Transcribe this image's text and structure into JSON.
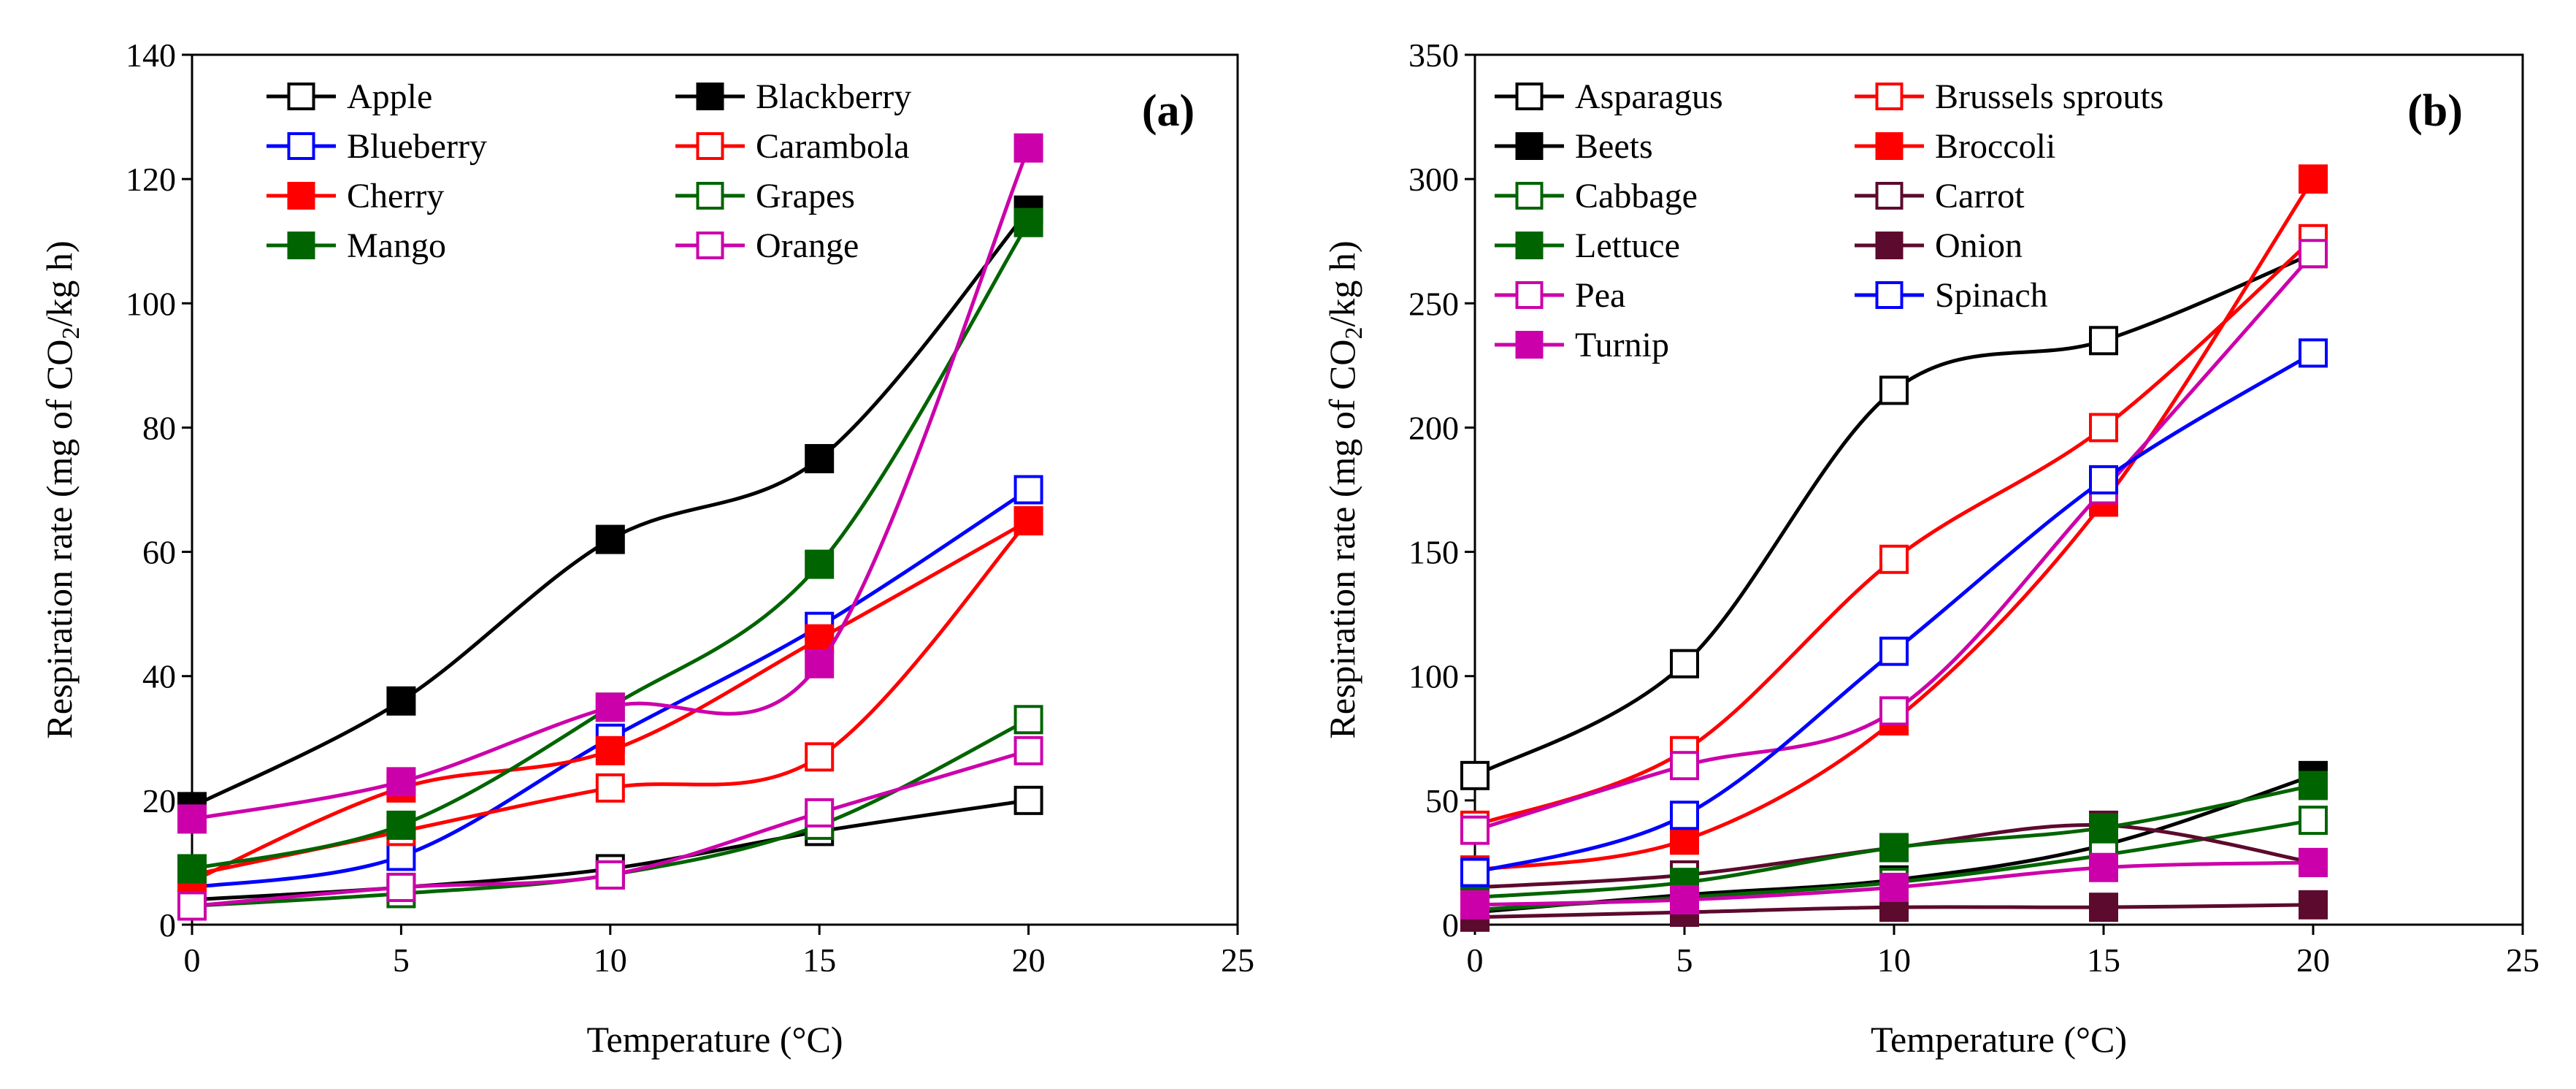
{
  "chart_data": [
    {
      "type": "line",
      "panel_label": "(a)",
      "xlabel": "Temperature (°C)",
      "ylabel_parts": [
        "Respiration rate (mg of CO",
        "2",
        "/kg h)"
      ],
      "xlim": [
        0,
        25
      ],
      "ylim": [
        0,
        140
      ],
      "xticks": [
        0,
        5,
        10,
        15,
        20,
        25
      ],
      "yticks": [
        0,
        20,
        40,
        60,
        80,
        100,
        120,
        140
      ],
      "x": [
        0,
        5,
        10,
        15,
        20
      ],
      "legend_position": "top-left",
      "series": [
        {
          "name": "Apple",
          "color": "#000000",
          "filled": false,
          "values": [
            4,
            6,
            9,
            15,
            20
          ]
        },
        {
          "name": "Blackberry",
          "color": "#000000",
          "filled": true,
          "values": [
            19,
            36,
            62,
            75,
            115
          ]
        },
        {
          "name": "Blueberry",
          "color": "#0000ff",
          "filled": false,
          "values": [
            6,
            11,
            30,
            48,
            70
          ]
        },
        {
          "name": "Carambola",
          "color": "#ff0000",
          "filled": false,
          "values": [
            8,
            15,
            22,
            27,
            65
          ]
        },
        {
          "name": "Cherry",
          "color": "#ff0000",
          "filled": true,
          "values": [
            7,
            22,
            28,
            46,
            65
          ]
        },
        {
          "name": "Grapes",
          "color": "#006400",
          "filled": false,
          "values": [
            3,
            5,
            8,
            16,
            33
          ]
        },
        {
          "name": "Mango",
          "color": "#006400",
          "filled": true,
          "values": [
            9,
            16,
            35,
            58,
            113
          ]
        },
        {
          "name": "Orange",
          "color": "#cc00aa",
          "filled": false,
          "values": [
            3,
            6,
            8,
            18,
            28
          ]
        },
        {
          "name": "Orange (filled)",
          "legend": false,
          "color": "#cc00aa",
          "filled": true,
          "values": [
            17,
            23,
            35,
            42,
            125
          ]
        }
      ]
    },
    {
      "type": "line",
      "panel_label": "(b)",
      "xlabel": "Temperature (°C)",
      "ylabel_parts": [
        "Respiration rate (mg of CO",
        "2",
        "/kg h)"
      ],
      "xlim": [
        0,
        25
      ],
      "ylim": [
        0,
        350
      ],
      "xticks": [
        0,
        5,
        10,
        15,
        20,
        25
      ],
      "yticks": [
        0,
        50,
        100,
        150,
        200,
        250,
        300,
        350
      ],
      "x": [
        0,
        5,
        10,
        15,
        20
      ],
      "legend_position": "top-left",
      "series": [
        {
          "name": "Asparagus",
          "color": "#000000",
          "filled": false,
          "values": [
            60,
            105,
            215,
            235,
            270
          ]
        },
        {
          "name": "Brussels sprouts",
          "color": "#ff0000",
          "filled": false,
          "values": [
            40,
            70,
            147,
            200,
            276
          ]
        },
        {
          "name": "Beets",
          "color": "#000000",
          "filled": true,
          "values": [
            5,
            12,
            18,
            32,
            60
          ]
        },
        {
          "name": "Broccoli",
          "color": "#ff0000",
          "filled": true,
          "values": [
            22,
            34,
            82,
            170,
            300
          ]
        },
        {
          "name": "Cabbage",
          "color": "#006400",
          "filled": false,
          "values": [
            6,
            11,
            17,
            28,
            42
          ]
        },
        {
          "name": "Carrot",
          "color": "#5c0a2e",
          "filled": false,
          "values": [
            15,
            20,
            31,
            40,
            25
          ]
        },
        {
          "name": "Lettuce",
          "color": "#006400",
          "filled": true,
          "values": [
            11,
            17,
            31,
            39,
            56
          ]
        },
        {
          "name": "Onion",
          "color": "#5c0a2e",
          "filled": true,
          "values": [
            3,
            5,
            7,
            7,
            8
          ]
        },
        {
          "name": "Pea",
          "color": "#cc00aa",
          "filled": false,
          "values": [
            38,
            64,
            86,
            175,
            270
          ]
        },
        {
          "name": "Spinach",
          "color": "#0000ff",
          "filled": false,
          "values": [
            21,
            44,
            110,
            179,
            230
          ]
        },
        {
          "name": "Turnip",
          "color": "#cc00aa",
          "filled": true,
          "values": [
            8,
            10,
            15,
            23,
            25
          ]
        }
      ]
    }
  ]
}
